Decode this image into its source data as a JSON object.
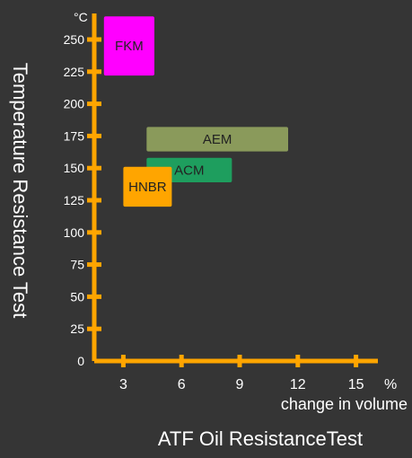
{
  "chart_data": {
    "type": "range-box",
    "title": "ATF Oil ResistanceTest",
    "ylabel": "Temperature Resistance Test",
    "xlabel": "change in volume",
    "y_unit": "°C",
    "x_unit": "%",
    "xlim": [
      1.5,
      16
    ],
    "ylim": [
      0,
      260
    ],
    "x_ticks": [
      3,
      6,
      9,
      12,
      15
    ],
    "x_tick_labels": [
      "3",
      "6",
      "9",
      "12",
      "15"
    ],
    "y_ticks": [
      0,
      25,
      50,
      75,
      100,
      125,
      150,
      175,
      200,
      225,
      250
    ],
    "y_tick_labels": [
      "0",
      "25",
      "50",
      "75",
      "100",
      "125",
      "150",
      "175",
      "200",
      "225",
      "250"
    ],
    "grid": false,
    "series": [
      {
        "name": "FKM",
        "x": [
          2.0,
          4.6
        ],
        "y": [
          222,
          268
        ],
        "color": "#ff00ff"
      },
      {
        "name": "AEM",
        "x": [
          4.2,
          11.5
        ],
        "y": [
          163,
          182
        ],
        "color": "#8a9a5b"
      },
      {
        "name": "ACM",
        "x": [
          4.2,
          8.6
        ],
        "y": [
          139,
          158
        ],
        "color": "#1e9e5e"
      },
      {
        "name": "HNBR",
        "x": [
          3.0,
          5.5
        ],
        "y": [
          120,
          151
        ],
        "color": "#ffa500"
      }
    ],
    "colors": {
      "axis": "#ffa500",
      "text": "#ffffff",
      "bar_text": "#222222"
    }
  }
}
